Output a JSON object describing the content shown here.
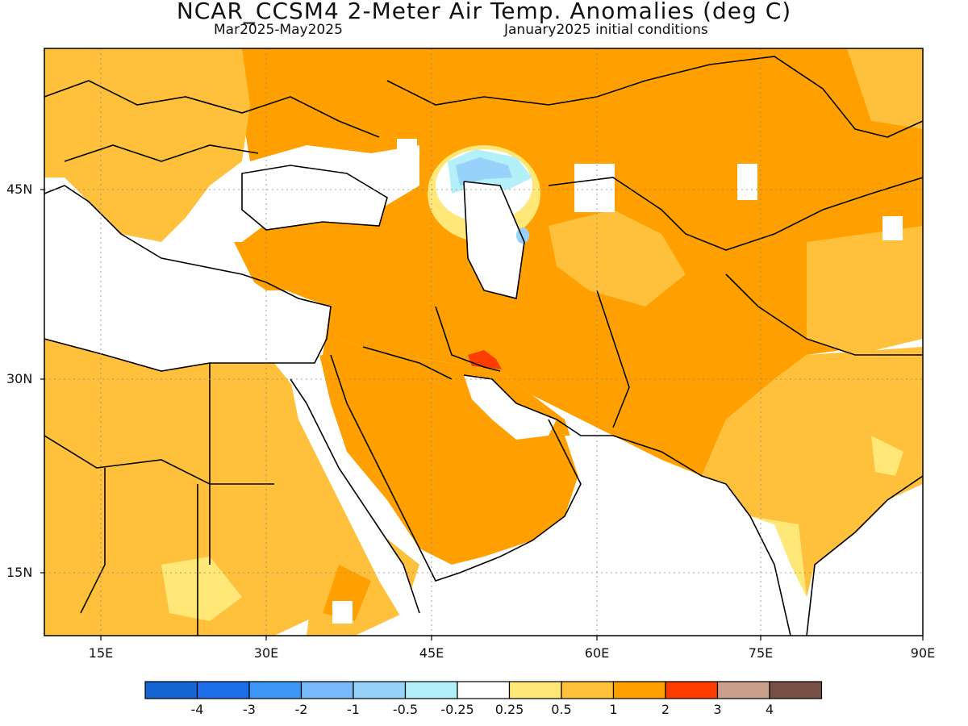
{
  "title": "NCAR_CCSM4 2-Meter Air Temp. Anomalies (deg C)",
  "subtitle_left": "Mar2025-May2025",
  "subtitle_right": "January2025 initial conditions",
  "map": {
    "lon_range": [
      10,
      90
    ],
    "lat_range": [
      10,
      55
    ],
    "lat_ticks": [
      "45N",
      "30N",
      "15N"
    ],
    "lon_ticks": [
      "15E",
      "30E",
      "45E",
      "60E",
      "75E",
      "90E"
    ],
    "gridlines": "dotted"
  },
  "colorbar": {
    "labels": [
      "-4",
      "-3",
      "-2",
      "-1",
      "-0.5",
      "-0.25",
      "0.25",
      "0.5",
      "1",
      "2",
      "3",
      "4"
    ],
    "colors": [
      "#1464d2",
      "#1e6eeb",
      "#3c96f5",
      "#78b9fa",
      "#96d2fa",
      "#b4f0fa",
      "#ffffff",
      "#ffe878",
      "#ffc03c",
      "#ffa000",
      "#ff3c00",
      "#c8a08c",
      "#785046"
    ]
  },
  "legend_colors": {
    "land_anomaly_1_2": "#ffa000",
    "land_anomaly_0_5_1": "#ffc03c",
    "land_anomaly_0_25_0_5": "#ffe878",
    "anomaly_2_3": "#ff3c00",
    "caspian_cold": "#96d2fa"
  }
}
